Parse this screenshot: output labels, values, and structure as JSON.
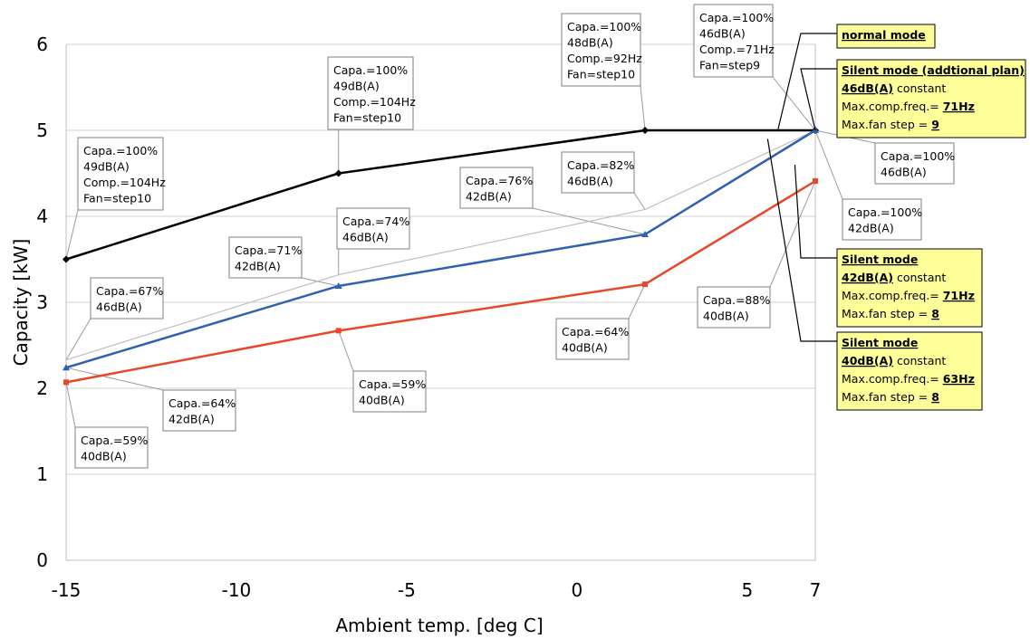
{
  "chart_data": {
    "type": "line",
    "xlabel": "Ambient temp. [deg C]",
    "ylabel": "Capacity [kW]",
    "xlim": [
      -15,
      7
    ],
    "ylim": [
      0,
      6
    ],
    "xticks": [
      -15,
      -10,
      -5,
      0,
      5,
      7
    ],
    "yticks": [
      0,
      1,
      2,
      3,
      4,
      5,
      6
    ],
    "grid": "horizontal",
    "x": [
      -15,
      -7,
      2,
      7
    ],
    "series": [
      {
        "key": "normal",
        "color": "#000000",
        "marker": "diamond",
        "values": [
          3.5,
          4.5,
          5.0,
          5.0
        ]
      },
      {
        "key": "silent46",
        "color": "#bfbfbf",
        "marker": "none",
        "values": [
          2.33,
          3.32,
          4.08,
          5.0
        ]
      },
      {
        "key": "silent42",
        "color": "#3060b0",
        "marker": "triangle",
        "values": [
          2.24,
          3.19,
          3.79,
          5.0
        ]
      },
      {
        "key": "silent40",
        "color": "#e8472a",
        "marker": "square",
        "values": [
          2.07,
          2.67,
          3.21,
          4.41
        ]
      }
    ],
    "callouts": [
      {
        "lines": [
          "Capa.=100%",
          "49dB(A)",
          "Comp.=104Hz",
          "Fan=step10"
        ],
        "point": [
          -15,
          3.5
        ]
      },
      {
        "lines": [
          "Capa.=100%",
          "49dB(A)",
          "Comp.=104Hz",
          "Fan=step10"
        ],
        "point": [
          -7,
          4.5
        ]
      },
      {
        "lines": [
          "Capa.=100%",
          "48dB(A)",
          "Comp.=92Hz",
          "Fan=step10"
        ],
        "point": [
          2,
          5.0
        ]
      },
      {
        "lines": [
          "Capa.=100%",
          "46dB(A)",
          "Comp.=71Hz",
          "Fan=step9"
        ],
        "point": [
          7,
          5.0
        ]
      },
      {
        "lines": [
          "Capa.=82%",
          "46dB(A)"
        ],
        "point": [
          2,
          4.08
        ]
      },
      {
        "lines": [
          "Capa.=76%",
          "42dB(A)"
        ],
        "point": [
          2,
          3.79
        ]
      },
      {
        "lines": [
          "Capa.=74%",
          "46dB(A)"
        ],
        "point": [
          -7,
          3.32
        ]
      },
      {
        "lines": [
          "Capa.=71%",
          "42dB(A)"
        ],
        "point": [
          -7,
          3.19
        ]
      },
      {
        "lines": [
          "Capa.=67%",
          "46dB(A)"
        ],
        "point": [
          -15,
          2.33
        ]
      },
      {
        "lines": [
          "Capa.=64%",
          "42dB(A)"
        ],
        "point": [
          -15,
          2.24
        ]
      },
      {
        "lines": [
          "Capa.=59%",
          "40dB(A)"
        ],
        "point": [
          -15,
          2.07
        ]
      },
      {
        "lines": [
          "Capa.=59%",
          "40dB(A)"
        ],
        "point": [
          -7,
          2.67
        ]
      },
      {
        "lines": [
          "Capa.=64%",
          "40dB(A)"
        ],
        "point": [
          2,
          3.21
        ]
      },
      {
        "lines": [
          "Capa.=88%",
          "40dB(A)"
        ],
        "point": [
          7,
          4.41
        ]
      },
      {
        "lines": [
          "Capa.=100%",
          "46dB(A)"
        ],
        "point": [
          7,
          5.0
        ]
      },
      {
        "lines": [
          "Capa.=100%",
          "42dB(A)"
        ],
        "point": [
          7,
          5.0
        ]
      }
    ],
    "legend": [
      {
        "title": "normal mode",
        "details": [],
        "target": [
          5.9,
          5.0
        ]
      },
      {
        "title": "Silent mode (addtional plan)",
        "details": [
          [
            {
              "t": "46dB(A)",
              "b": true
            },
            {
              "t": " constant",
              "b": false
            }
          ],
          [
            {
              "t": "Max.comp.freq.= ",
              "b": false
            },
            {
              "t": "71Hz",
              "b": true
            }
          ],
          [
            {
              "t": "Max.fan step = ",
              "b": false
            },
            {
              "t": "9",
              "b": true
            }
          ]
        ],
        "target": [
          7,
          5.0
        ]
      },
      {
        "title": "Silent  mode",
        "details": [
          [
            {
              "t": "42dB(A)",
              "b": true
            },
            {
              "t": " constant",
              "b": false
            }
          ],
          [
            {
              "t": "Max.comp.freq.= ",
              "b": false
            },
            {
              "t": "71Hz",
              "b": true
            }
          ],
          [
            {
              "t": "Max.fan step = ",
              "b": false
            },
            {
              "t": "8",
              "b": true
            }
          ]
        ],
        "target": [
          6.4,
          4.6
        ]
      },
      {
        "title": "Silent  mode",
        "details": [
          [
            {
              "t": "40dB(A)",
              "b": true
            },
            {
              "t": " constant",
              "b": false
            }
          ],
          [
            {
              "t": "Max.comp.freq.= ",
              "b": false
            },
            {
              "t": "63Hz",
              "b": true
            }
          ],
          [
            {
              "t": "Max.fan step = ",
              "b": false
            },
            {
              "t": "8",
              "b": true
            }
          ]
        ],
        "target": [
          5.6,
          4.9
        ]
      }
    ]
  }
}
